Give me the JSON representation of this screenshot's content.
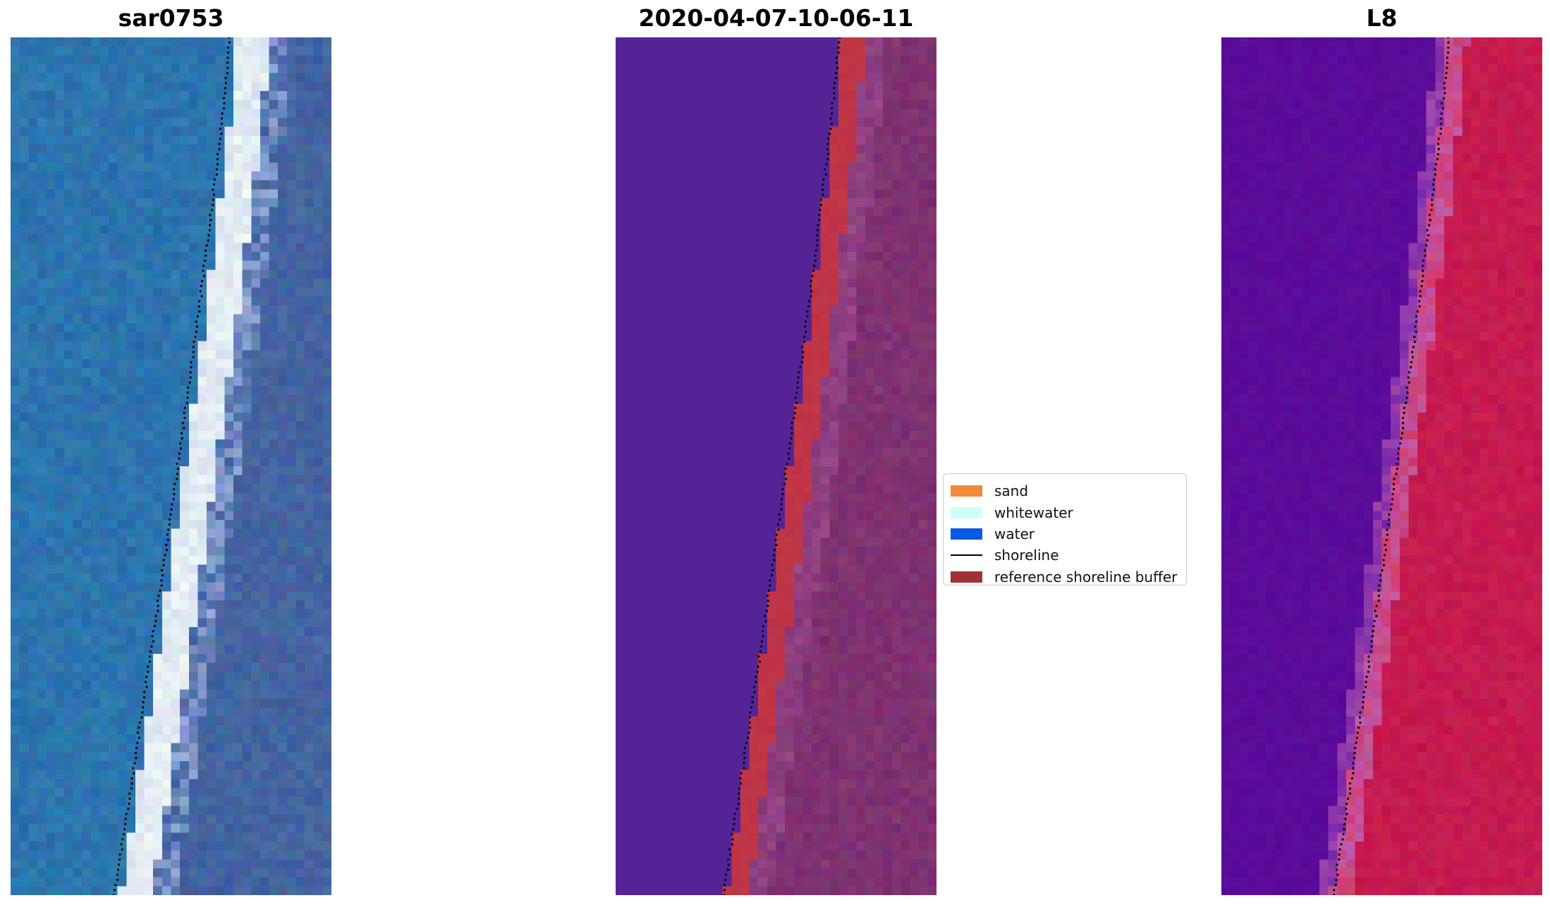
{
  "panels": [
    {
      "id": "sar",
      "title": "sar0753"
    },
    {
      "id": "classified",
      "title": "2020-04-07-10-06-11"
    },
    {
      "id": "landsat",
      "title": "L8"
    }
  ],
  "legend": {
    "items": [
      {
        "label": "sand",
        "color": "#f28a3c",
        "kind": "patch"
      },
      {
        "label": "whitewater",
        "color": "#ccfff5",
        "kind": "patch"
      },
      {
        "label": "water",
        "color": "#0a5ae6",
        "kind": "patch"
      },
      {
        "label": "shoreline",
        "color": "#000000",
        "kind": "line"
      },
      {
        "label": "reference shoreline buffer",
        "color": "#a03236",
        "kind": "patch"
      }
    ]
  },
  "colors": {
    "sar_water": "#2d78b0",
    "sar_whitewater": "#eef6f6",
    "sar_land": "#3f63a0",
    "classified_water": "#542497",
    "classified_buffer": "#bf3546",
    "classified_land": "#7a2f6e",
    "l8_water": "#5a0a9a",
    "l8_land": "#c4184c",
    "shoreline": "#000000"
  }
}
